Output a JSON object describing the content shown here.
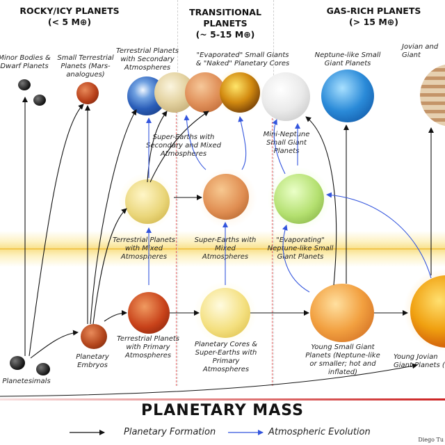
{
  "headers": {
    "rocky_line1": "ROCKY/ICY PLANETS",
    "rocky_line2": "(< 5 M⊕)",
    "trans_line1": "TRANSITIONAL",
    "trans_line2": "PLANETS",
    "trans_line3": "(~ 5-15 M⊕)",
    "gas_line1": "GAS-RICH PLANETS",
    "gas_line2": "(> 15 M⊕)"
  },
  "labels": {
    "minor_bodies": "Minor Bodies & Dwarf Planets",
    "small_terrestrial": "Small Terrestrial Planets (Mars-analogues)",
    "terr_secondary": "Terrestrial Planets with Secondary Atmospheres",
    "evaporated": "\"Evaporated\" Small Giants & \"Naked\" Planetary Cores",
    "neptune_like": "Neptune-like Small Giant Planets",
    "jovian_top": "Jovian and Giant",
    "super_secondary": "Super-Earths with Secondary and Mixed Atmospheres",
    "mini_neptune": "Mini-Neptune Small Giant Planets",
    "terr_mixed": "Terrestrial Planets with Mixed Atmospheres",
    "super_mixed": "Super-Earths with Mixed Atmospheres",
    "evaporating": "\"Evaporating\" Neptune-like Small Giant Planets",
    "terr_primary": "Terrestrial Planets with Primary Atmospheres",
    "cores": "Planetary Cores & Super-Earths with Primary Atmospheres",
    "young_small": "Young Small Giant Planets (Neptune-like or smaller; hot and inflated)",
    "young_jovian": "Young Jovian Giant Planets (",
    "embryos": "Planetary Embryos",
    "planetesimals": "Planetesimals"
  },
  "footer": {
    "mass_title": "PLANETARY MASS",
    "legend_formation": "Planetary Formation",
    "legend_atmospheric": "Atmospheric Evolution",
    "credit": "Diego Tu"
  },
  "colors": {
    "formation_arrow": "#111111",
    "atmospheric_arrow": "#3355dd",
    "mass_rule": "#cc2222"
  }
}
